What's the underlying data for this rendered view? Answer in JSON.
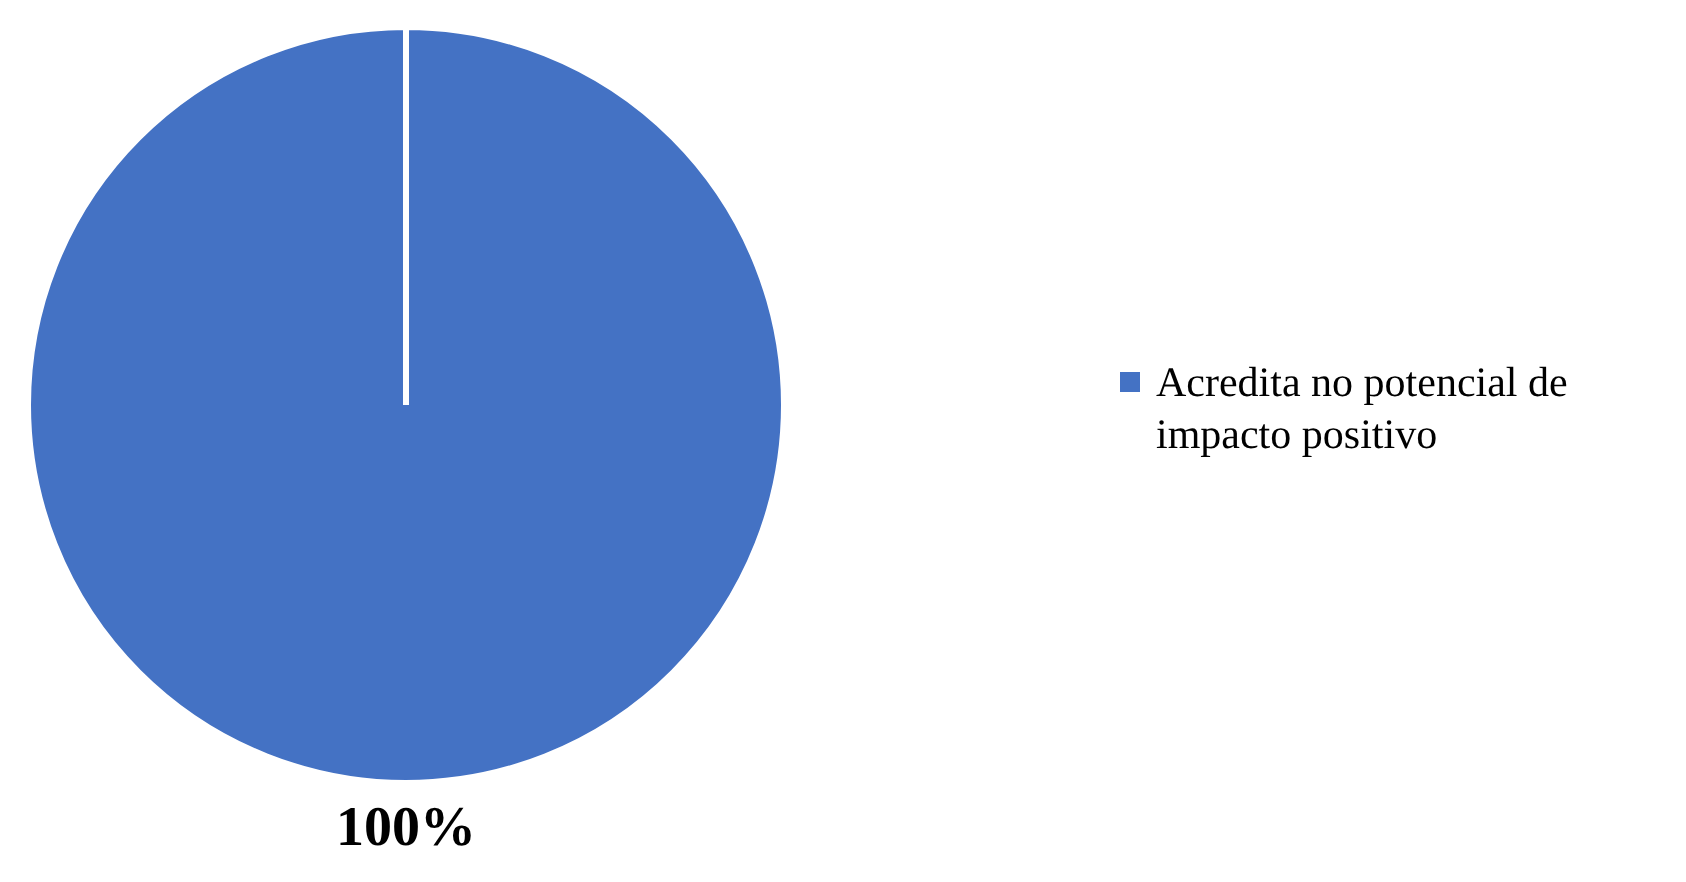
{
  "chart_data": {
    "type": "pie",
    "categories": [
      "Acredita no potencial de impacto positivo"
    ],
    "values": [
      100
    ],
    "colors": [
      "#4472c4"
    ],
    "value_labels": [
      "100%"
    ],
    "legend": "right"
  }
}
